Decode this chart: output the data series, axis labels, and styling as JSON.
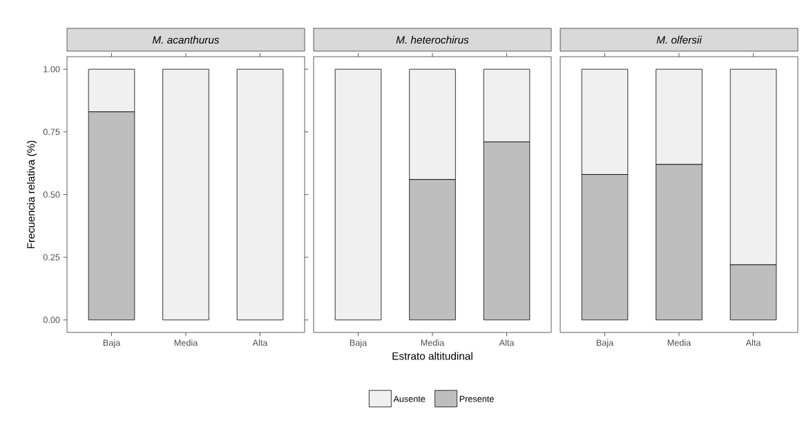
{
  "chart_data": [
    {
      "type": "bar",
      "title": "M. acanthurus",
      "ylabel": "Frecuencia relativa (%)",
      "categories": [
        "Baja",
        "Media",
        "Alta"
      ],
      "stacked": true,
      "ylim": [
        -0.05,
        1.05
      ],
      "yticks": [
        {
          "value": 0,
          "label": "0.00"
        },
        {
          "value": 0.25,
          "label": "0.25"
        },
        {
          "value": 0.5,
          "label": "0.50"
        },
        {
          "value": 0.75,
          "label": "0.75"
        },
        {
          "value": 1,
          "label": "1.00"
        }
      ],
      "series": [
        {
          "color": "#bebebe",
          "values": [
            0.83,
            0,
            0
          ]
        },
        {
          "color": "#f0f0f0",
          "values": [
            0.17,
            1,
            1
          ]
        }
      ]
    },
    {
      "type": "bar",
      "title": "M. heterochirus",
      "xlabel": "Estrato altitudinal",
      "categories": [
        "Baja",
        "Media",
        "Alta"
      ],
      "stacked": true,
      "legend": "bottom",
      "tick_labels": "x",
      "ylim": [
        -0.05,
        1.05
      ],
      "series": [
        {
          "name": "Presente",
          "color": "#bebebe",
          "values": [
            0,
            0.56,
            0.71
          ]
        },
        {
          "name": "Ausente",
          "color": "#f0f0f0",
          "values": [
            1,
            0.44,
            0.29
          ]
        }
      ]
    },
    {
      "type": "bar",
      "title": "M. olfersii",
      "categories": [
        "Baja",
        "Media",
        "Alta"
      ],
      "stacked": true,
      "tick_labels": "x",
      "ylim": [
        -0.05,
        1.05
      ],
      "series": [
        {
          "color": "#bebebe",
          "values": [
            0.58,
            0.62,
            0.22
          ]
        },
        {
          "color": "#f0f0f0",
          "values": [
            0.42,
            0.38,
            0.78
          ]
        }
      ]
    }
  ]
}
